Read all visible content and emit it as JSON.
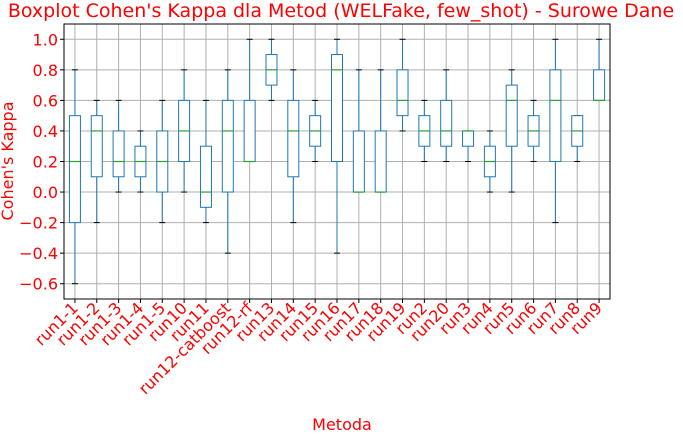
{
  "chart_data": {
    "type": "boxplot",
    "title": "Boxplot Cohen's Kappa dla Metod (WELFake, few_shot) - Surowe Dane",
    "xlabel": "Metoda",
    "ylabel": "Cohen's Kappa",
    "ylim": [
      -0.7,
      1.1
    ],
    "yticks": [
      -0.6,
      -0.4,
      -0.2,
      0.0,
      0.2,
      0.4,
      0.6,
      0.8,
      1.0
    ],
    "ytick_labels": [
      "−0.6",
      "−0.4",
      "−0.2",
      "0.0",
      "0.2",
      "0.4",
      "0.6",
      "0.8",
      "1.0"
    ],
    "grid": true,
    "colors": {
      "text": "#ff0000",
      "box": "#1f77b4",
      "median": "#2ca02c",
      "grid": "#b0b0b0",
      "axis": "#000000"
    },
    "categories": [
      "run1-1",
      "run1-2",
      "run1-3",
      "run1-4",
      "run1-5",
      "run10",
      "run11",
      "run12-catboost",
      "run12-rf",
      "run13",
      "run14",
      "run15",
      "run16",
      "run17",
      "run18",
      "run19",
      "run2",
      "run20",
      "run3",
      "run4",
      "run5",
      "run6",
      "run7",
      "run8",
      "run9"
    ],
    "boxes": [
      {
        "whislo": -0.6,
        "q1": -0.2,
        "med": 0.2,
        "q3": 0.5,
        "whishi": 0.8
      },
      {
        "whislo": -0.2,
        "q1": 0.1,
        "med": 0.4,
        "q3": 0.5,
        "whishi": 0.6
      },
      {
        "whislo": 0.0,
        "q1": 0.1,
        "med": 0.2,
        "q3": 0.4,
        "whishi": 0.6
      },
      {
        "whislo": 0.0,
        "q1": 0.1,
        "med": 0.2,
        "q3": 0.3,
        "whishi": 0.4
      },
      {
        "whislo": -0.2,
        "q1": 0.0,
        "med": 0.2,
        "q3": 0.4,
        "whishi": 0.6
      },
      {
        "whislo": 0.0,
        "q1": 0.2,
        "med": 0.4,
        "q3": 0.6,
        "whishi": 0.8
      },
      {
        "whislo": -0.2,
        "q1": -0.1,
        "med": 0.0,
        "q3": 0.3,
        "whishi": 0.6
      },
      {
        "whislo": -0.4,
        "q1": 0.0,
        "med": 0.4,
        "q3": 0.6,
        "whishi": 0.8
      },
      {
        "whislo": 0.2,
        "q1": 0.2,
        "med": 0.2,
        "q3": 0.6,
        "whishi": 1.0
      },
      {
        "whislo": 0.6,
        "q1": 0.7,
        "med": 0.8,
        "q3": 0.9,
        "whishi": 1.0
      },
      {
        "whislo": -0.2,
        "q1": 0.1,
        "med": 0.4,
        "q3": 0.6,
        "whishi": 0.8
      },
      {
        "whislo": 0.2,
        "q1": 0.3,
        "med": 0.4,
        "q3": 0.5,
        "whishi": 0.6
      },
      {
        "whislo": -0.4,
        "q1": 0.2,
        "med": 0.8,
        "q3": 0.9,
        "whishi": 1.0
      },
      {
        "whislo": 0.0,
        "q1": 0.0,
        "med": 0.0,
        "q3": 0.4,
        "whishi": 0.8
      },
      {
        "whislo": 0.0,
        "q1": 0.0,
        "med": 0.0,
        "q3": 0.4,
        "whishi": 0.8
      },
      {
        "whislo": 0.4,
        "q1": 0.5,
        "med": 0.6,
        "q3": 0.8,
        "whishi": 1.0
      },
      {
        "whislo": 0.2,
        "q1": 0.3,
        "med": 0.4,
        "q3": 0.5,
        "whishi": 0.6
      },
      {
        "whislo": 0.2,
        "q1": 0.3,
        "med": 0.4,
        "q3": 0.6,
        "whishi": 0.8
      },
      {
        "whislo": 0.2,
        "q1": 0.3,
        "med": 0.4,
        "q3": 0.4,
        "whishi": 0.4
      },
      {
        "whislo": 0.0,
        "q1": 0.1,
        "med": 0.2,
        "q3": 0.3,
        "whishi": 0.4
      },
      {
        "whislo": 0.0,
        "q1": 0.3,
        "med": 0.6,
        "q3": 0.7,
        "whishi": 0.8
      },
      {
        "whislo": 0.2,
        "q1": 0.3,
        "med": 0.4,
        "q3": 0.5,
        "whishi": 0.6
      },
      {
        "whislo": -0.2,
        "q1": 0.2,
        "med": 0.6,
        "q3": 0.8,
        "whishi": 1.0
      },
      {
        "whislo": 0.2,
        "q1": 0.3,
        "med": 0.4,
        "q3": 0.5,
        "whishi": 0.5
      },
      {
        "whislo": 0.6,
        "q1": 0.6,
        "med": 0.6,
        "q3": 0.8,
        "whishi": 1.0
      }
    ]
  }
}
